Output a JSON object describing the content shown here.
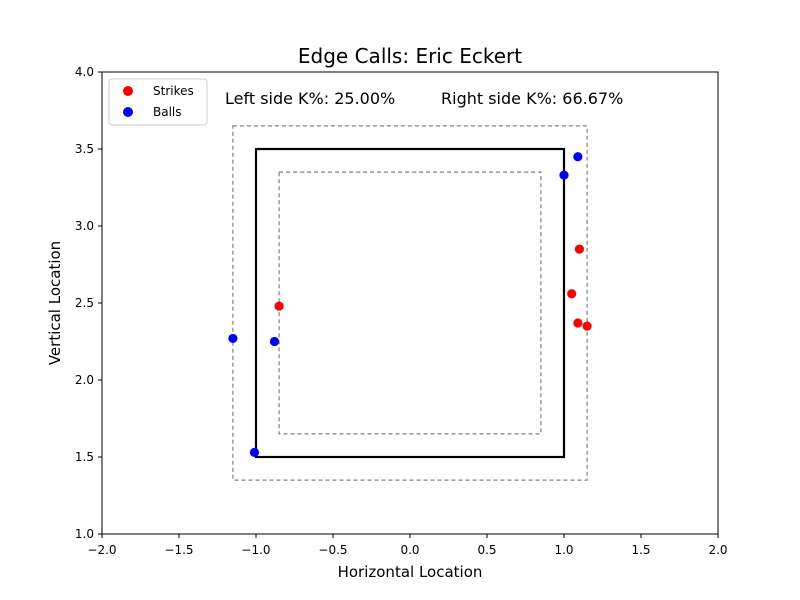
{
  "chart_data": {
    "type": "scatter",
    "title": "Edge Calls: Eric Eckert",
    "xlabel": "Horizontal Location",
    "ylabel": "Vertical Location",
    "xlim": [
      -2.0,
      2.0
    ],
    "ylim": [
      1.0,
      4.0
    ],
    "xticks": [
      "−2.0",
      "−1.5",
      "−1.0",
      "−0.5",
      "0.0",
      "0.5",
      "1.0",
      "1.5",
      "2.0"
    ],
    "yticks": [
      "1.0",
      "1.5",
      "2.0",
      "2.5",
      "3.0",
      "3.5",
      "4.0"
    ],
    "xtick_values": [
      -2.0,
      -1.5,
      -1.0,
      -0.5,
      0.0,
      0.5,
      1.0,
      1.5,
      2.0
    ],
    "ytick_values": [
      1.0,
      1.5,
      2.0,
      2.5,
      3.0,
      3.5,
      4.0
    ],
    "grid": false,
    "legend_position": "top-left",
    "annotations": {
      "left": "Left side K%: 25.00%",
      "right": "Right side K%: 66.67%"
    },
    "zones": {
      "strike_zone": {
        "x": [
          -1.0,
          1.0
        ],
        "y": [
          1.5,
          3.5
        ],
        "style": "solid",
        "color": "#000000"
      },
      "outer_edge": {
        "x": [
          -1.15,
          1.15
        ],
        "y": [
          1.35,
          3.65
        ],
        "style": "dashed",
        "color": "#808080"
      },
      "inner_edge": {
        "x": [
          -0.85,
          0.85
        ],
        "y": [
          1.65,
          3.35
        ],
        "style": "dashed",
        "color": "#808080"
      }
    },
    "series": [
      {
        "name": "Strikes",
        "color": "#ff0000",
        "points": [
          {
            "x": -0.85,
            "y": 2.48
          },
          {
            "x": 1.1,
            "y": 2.85
          },
          {
            "x": 1.05,
            "y": 2.56
          },
          {
            "x": 1.09,
            "y": 2.37
          },
          {
            "x": 1.15,
            "y": 2.35
          }
        ]
      },
      {
        "name": "Balls",
        "color": "#0000ff",
        "points": [
          {
            "x": 1.09,
            "y": 3.45
          },
          {
            "x": 1.0,
            "y": 3.33
          },
          {
            "x": -1.15,
            "y": 2.27
          },
          {
            "x": -0.88,
            "y": 2.25
          },
          {
            "x": -1.01,
            "y": 1.53
          }
        ]
      }
    ]
  }
}
